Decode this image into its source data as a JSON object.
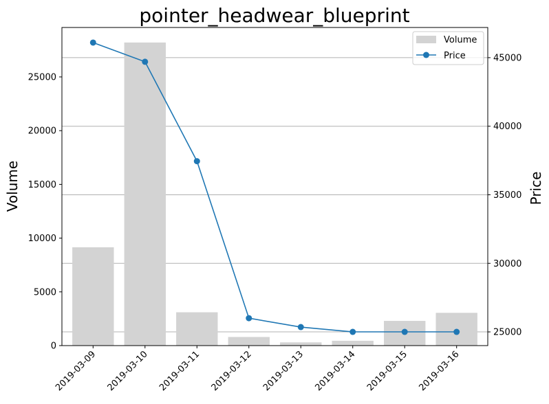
{
  "chart_data": {
    "type": "bar+line",
    "title": "pointer_headwear_blueprint",
    "categories": [
      "2019-03-09",
      "2019-03-10",
      "2019-03-11",
      "2019-03-12",
      "2019-03-13",
      "2019-03-14",
      "2019-03-15",
      "2019-03-16"
    ],
    "series": [
      {
        "name": "Volume",
        "type": "bar",
        "axis": "left",
        "color": "#d3d3d3",
        "values": [
          9150,
          28200,
          3100,
          800,
          300,
          450,
          2300,
          3050
        ]
      },
      {
        "name": "Price",
        "type": "line",
        "axis": "right",
        "color": "#1f77b4",
        "values": [
          46100,
          44700,
          37450,
          26000,
          25350,
          25000,
          25000,
          25000
        ]
      }
    ],
    "xlabel": "",
    "ylabel_left": "Volume",
    "ylabel_right": "Price",
    "ylim_left": [
      0,
      29600
    ],
    "ylim_right": [
      24000,
      47200
    ],
    "yticks_left": [
      0,
      5000,
      10000,
      15000,
      20000,
      25000
    ],
    "yticks_right": [
      25000,
      30000,
      35000,
      40000,
      45000
    ],
    "grid": "horizontal, right axis",
    "legend": "top-right",
    "xtick_rotation": 45
  }
}
